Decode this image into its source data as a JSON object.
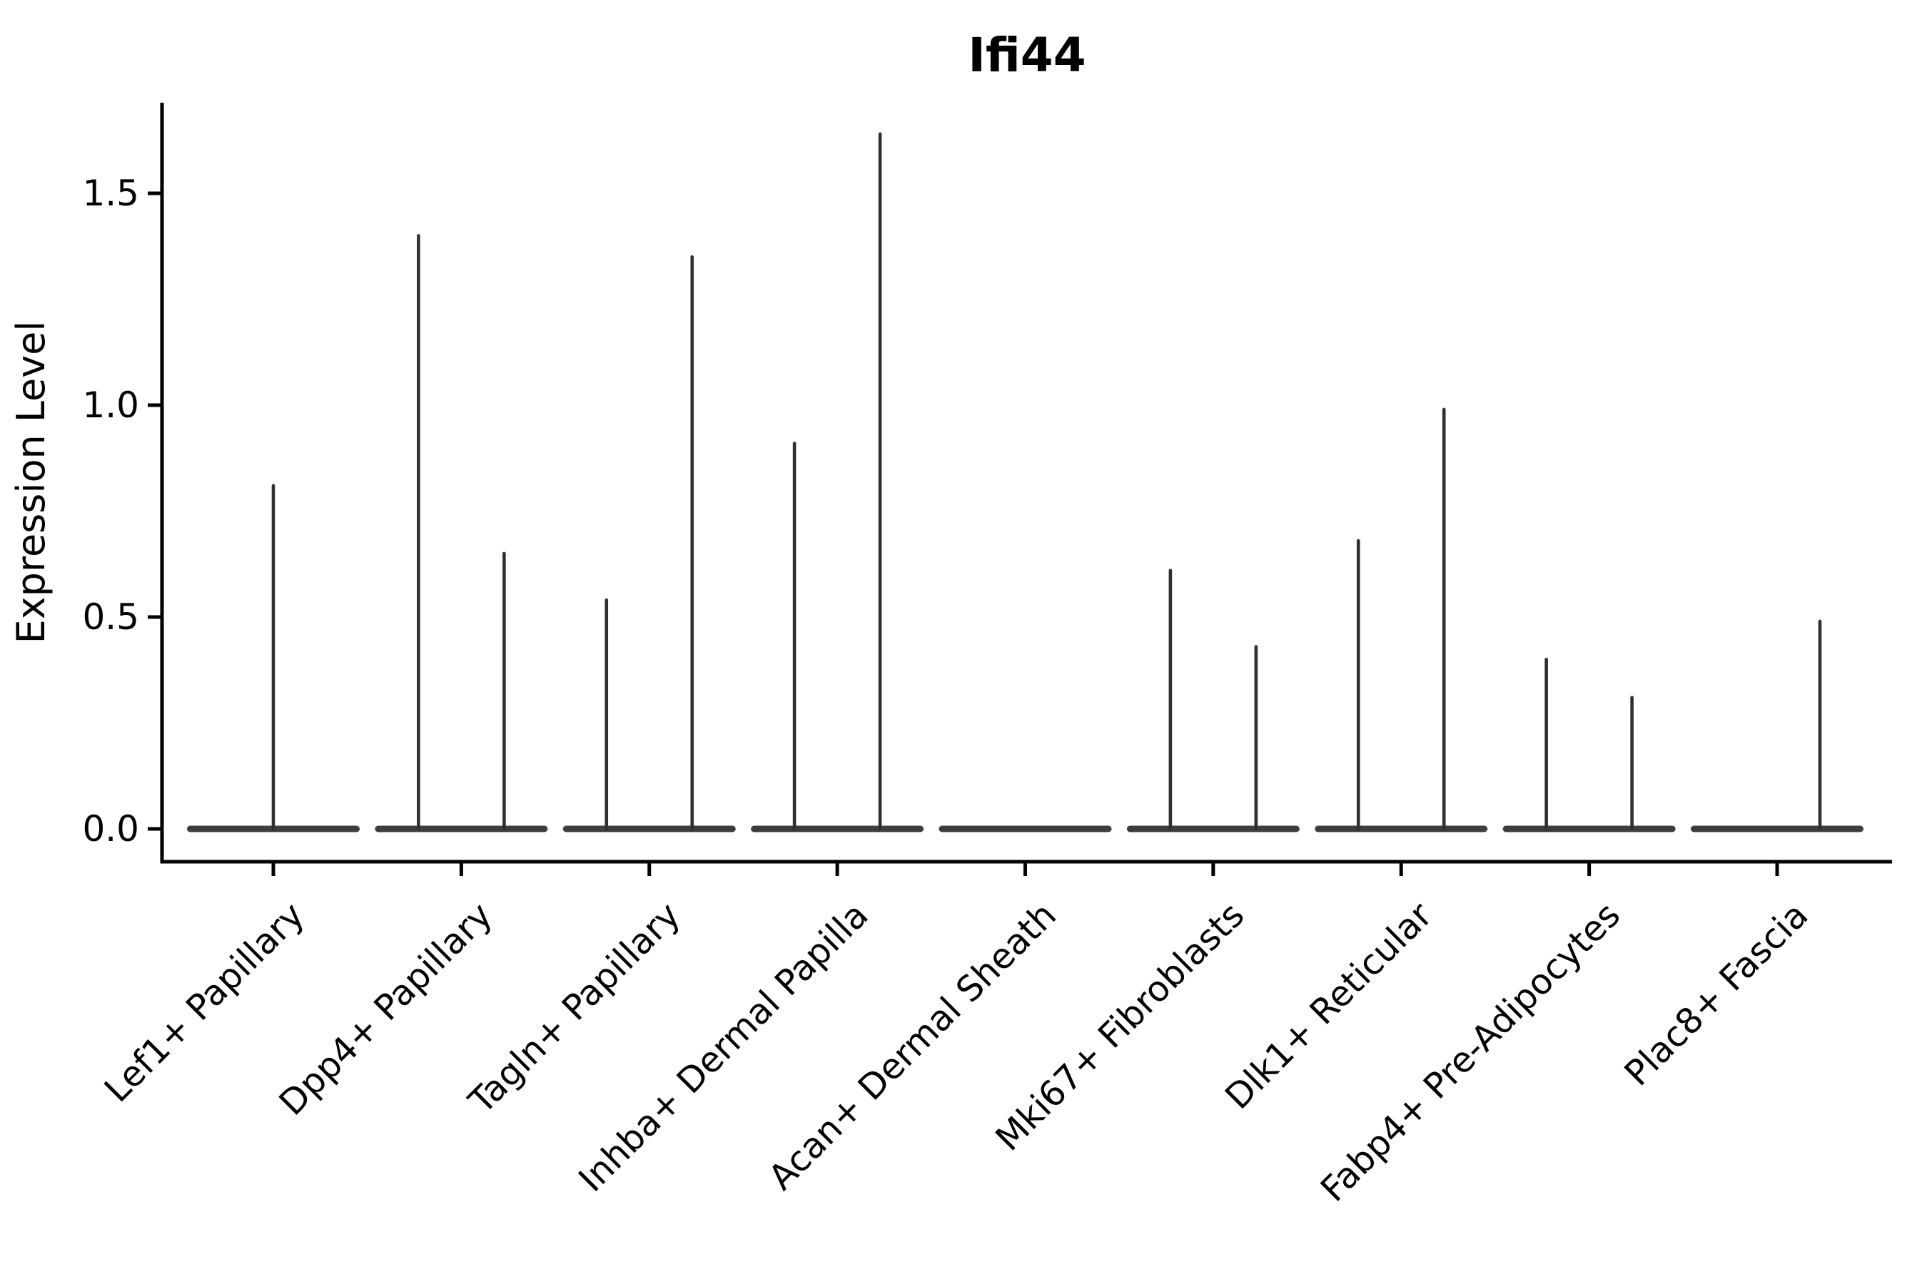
{
  "title": "Ifi44",
  "axes": {
    "ylabel": "Expression Level",
    "xlabel": "",
    "y_tick_labels": [
      "0.0",
      "0.5",
      "1.0",
      "1.5"
    ],
    "y_tick_values": [
      0.0,
      0.5,
      1.0,
      1.5
    ],
    "y_range": [
      -0.08,
      1.71
    ]
  },
  "style": {
    "violin_color": "#303030",
    "violin_base_color": "#3d3d3d",
    "axis_color": "#000000",
    "background": "#ffffff"
  },
  "chart_data": {
    "type": "violin",
    "title": "Ifi44",
    "xlabel": "",
    "ylabel": "Expression Level",
    "ylim": [
      -0.08,
      1.71
    ],
    "y_ticks": [
      0.0,
      0.5,
      1.0,
      1.5
    ],
    "grid": false,
    "legend": false,
    "baseline_value": 0.0,
    "description": "Each category shows a width-collapsed violin: a flat dense base at expression 0 plus thin spikes reaching the maximum expression of each dodged group.",
    "categories": [
      "Lef1+ Papillary",
      "Dpp4+ Papillary",
      "Tagln+ Papillary",
      "Inhba+ Dermal Papilla",
      "Acan+ Dermal Sheath",
      "Mki67+ Fibroblasts",
      "Dlk1+ Reticular",
      "Fabp4+ Pre-Adipocytes",
      "Plac8+ Fascia"
    ],
    "violins": [
      {
        "category": "Lef1+ Papillary",
        "spikes": [
          {
            "slot": "center",
            "max": 0.81
          }
        ]
      },
      {
        "category": "Dpp4+ Papillary",
        "spikes": [
          {
            "slot": "left",
            "max": 1.4
          },
          {
            "slot": "right",
            "max": 0.65
          }
        ]
      },
      {
        "category": "Tagln+ Papillary",
        "spikes": [
          {
            "slot": "left",
            "max": 0.54
          },
          {
            "slot": "right",
            "max": 1.35
          }
        ]
      },
      {
        "category": "Inhba+ Dermal Papilla",
        "spikes": [
          {
            "slot": "left",
            "max": 0.91
          },
          {
            "slot": "right",
            "max": 1.64
          }
        ]
      },
      {
        "category": "Acan+ Dermal Sheath",
        "spikes": []
      },
      {
        "category": "Mki67+ Fibroblasts",
        "spikes": [
          {
            "slot": "left",
            "max": 0.61
          },
          {
            "slot": "right",
            "max": 0.43
          }
        ]
      },
      {
        "category": "Dlk1+ Reticular",
        "spikes": [
          {
            "slot": "left",
            "max": 0.68
          },
          {
            "slot": "right",
            "max": 0.99
          }
        ]
      },
      {
        "category": "Fabp4+ Pre-Adipocytes",
        "spikes": [
          {
            "slot": "left",
            "max": 0.4
          },
          {
            "slot": "right",
            "max": 0.31
          }
        ]
      },
      {
        "category": "Plac8+ Fascia",
        "spikes": [
          {
            "slot": "right",
            "max": 0.49
          }
        ]
      }
    ]
  }
}
